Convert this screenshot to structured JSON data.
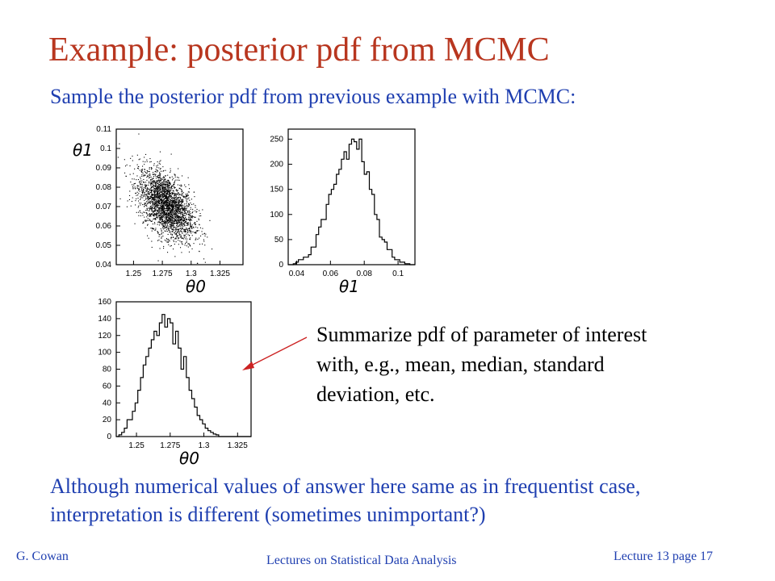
{
  "slide": {
    "title": "Example:  posterior pdf from MCMC",
    "subtitle": "Sample the posterior pdf from previous example with MCMC:",
    "summary_text": "Summarize pdf of parameter of interest with, e.g., mean, median, standard deviation, etc.",
    "bottom_text": "Although numerical values of answer here same as in frequentist case, interpretation is different (sometimes unimportant?)",
    "footer_left": "G. Cowan",
    "footer_center": "Lectures on Statistical Data Analysis",
    "footer_right": "Lecture 13  page 17",
    "colors": {
      "title": "#b8361f",
      "text_blue": "#1f3fb0",
      "arrow": "#cc2222"
    }
  },
  "chart_data": [
    {
      "type": "scatter",
      "id": "joint",
      "xlabel": "θ0",
      "ylabel": "θ1",
      "x_ticks": [
        "1.25",
        "1.275",
        "1.3",
        "1.325"
      ],
      "y_ticks": [
        "0.04",
        "0.05",
        "0.06",
        "0.07",
        "0.08",
        "0.09",
        "0.1",
        "0.11"
      ],
      "xlim": [
        1.235,
        1.345
      ],
      "ylim": [
        0.04,
        0.11
      ],
      "center": [
        1.278,
        0.071
      ],
      "sigma": [
        0.012,
        0.009
      ],
      "correlation": -0.5
    },
    {
      "type": "histogram",
      "id": "theta1",
      "xlabel": "θ1",
      "x_ticks": [
        "0.04",
        "0.06",
        "0.08",
        "0.1"
      ],
      "y_ticks": [
        "0",
        "50",
        "100",
        "150",
        "200",
        "250"
      ],
      "xlim": [
        0.035,
        0.11
      ],
      "ylim": [
        0,
        270
      ],
      "bin_start": 0.035,
      "bin_width": 0.0015,
      "counts": [
        0,
        0,
        2,
        5,
        10,
        10,
        15,
        15,
        20,
        35,
        35,
        60,
        75,
        90,
        90,
        120,
        140,
        150,
        160,
        180,
        190,
        210,
        225,
        210,
        240,
        250,
        245,
        230,
        250,
        205,
        180,
        185,
        150,
        140,
        100,
        90,
        55,
        50,
        45,
        30,
        30,
        15,
        10,
        10,
        5,
        5,
        2,
        2,
        0,
        0
      ]
    },
    {
      "type": "histogram",
      "id": "theta0",
      "xlabel": "θ0",
      "x_ticks": [
        "1.25",
        "1.275",
        "1.3",
        "1.325"
      ],
      "y_ticks": [
        "0",
        "20",
        "40",
        "60",
        "80",
        "100",
        "120",
        "140",
        "160"
      ],
      "xlim": [
        1.235,
        1.335
      ],
      "ylim": [
        0,
        160
      ],
      "bin_start": 1.235,
      "bin_width": 0.002,
      "counts": [
        0,
        2,
        5,
        10,
        20,
        20,
        30,
        40,
        55,
        70,
        85,
        95,
        105,
        115,
        125,
        120,
        135,
        145,
        130,
        140,
        135,
        110,
        125,
        105,
        80,
        95,
        70,
        55,
        45,
        35,
        25,
        20,
        15,
        10,
        7,
        5,
        3,
        2,
        0,
        0,
        0,
        0,
        0,
        0,
        0,
        0,
        0,
        0,
        0,
        0
      ]
    }
  ]
}
